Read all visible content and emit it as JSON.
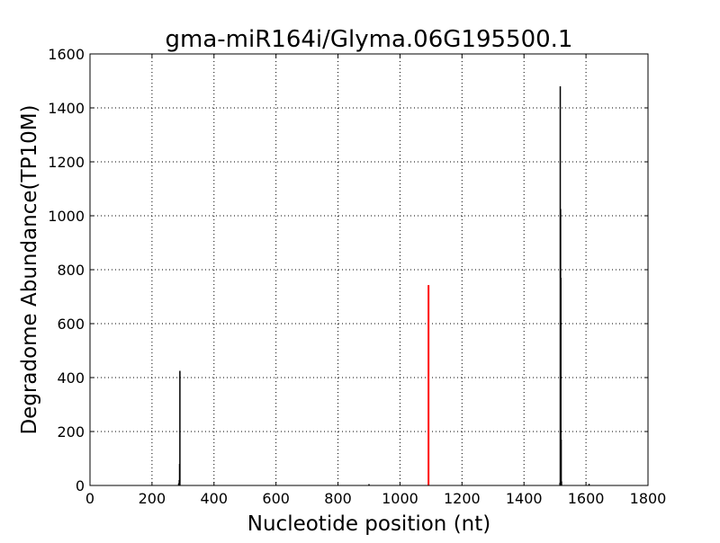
{
  "chart_data": {
    "type": "bar",
    "title": "gma-miR164i/Glyma.06G195500.1",
    "xlabel": "Nucleotide position (nt)",
    "ylabel": "Degradome Abundance(TP10M)",
    "xlim": [
      0,
      1800
    ],
    "ylim": [
      0,
      1600
    ],
    "xticks": [
      0,
      200,
      400,
      600,
      800,
      1000,
      1200,
      1400,
      1600,
      1800
    ],
    "yticks": [
      0,
      200,
      400,
      600,
      800,
      1000,
      1200,
      1400,
      1600
    ],
    "grid": true,
    "series": [
      {
        "color": "#000000",
        "x": [
          286,
          288,
          289,
          290,
          900,
          1516,
          1517,
          1518,
          1519,
          1520,
          1521,
          1610
        ],
        "values": [
          8,
          20,
          80,
          425,
          5,
          10,
          1480,
          1025,
          770,
          170,
          15,
          6
        ]
      },
      {
        "color": "#ff0000",
        "x": [
          1092
        ],
        "values": [
          743
        ]
      }
    ]
  }
}
